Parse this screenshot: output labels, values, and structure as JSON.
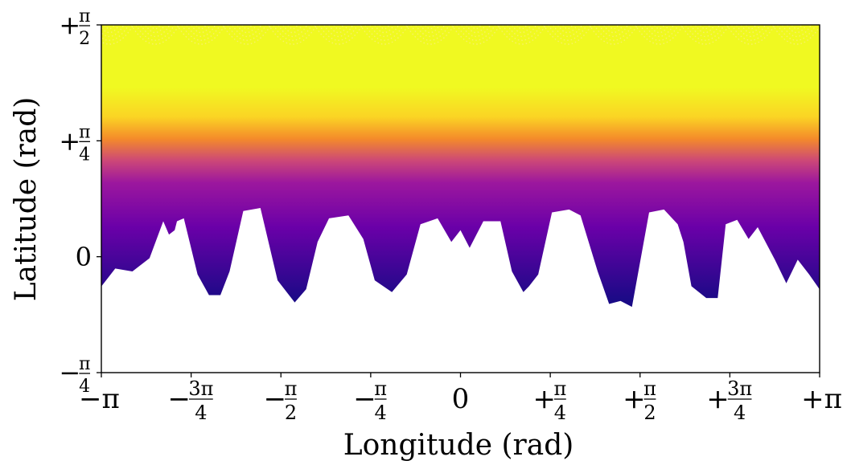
{
  "chart_data": {
    "type": "scatter",
    "title": "",
    "xlabel": "Longitude (rad)",
    "ylabel": "Latitude (rad)",
    "xlim": [
      -3.14159,
      3.14159
    ],
    "ylim": [
      -0.7854,
      1.5708
    ],
    "colormap": "plasma",
    "x_ticks": [
      {
        "value": -3.14159,
        "label": "−π"
      },
      {
        "value": -2.35619,
        "label": "−3π/4"
      },
      {
        "value": -1.5708,
        "label": "−π/2"
      },
      {
        "value": -0.7854,
        "label": "−π/4"
      },
      {
        "value": 0,
        "label": "0"
      },
      {
        "value": 0.7854,
        "label": "+π/4"
      },
      {
        "value": 1.5708,
        "label": "+π/2"
      },
      {
        "value": 2.35619,
        "label": "+3π/4"
      },
      {
        "value": 3.14159,
        "label": "+π"
      }
    ],
    "y_ticks": [
      {
        "value": -0.7854,
        "label": "−π/4"
      },
      {
        "value": 0,
        "label": "0"
      },
      {
        "value": 0.7854,
        "label": "+π/4"
      },
      {
        "value": 1.5708,
        "label": "+π/2"
      }
    ],
    "lower_boundary": {
      "x": [
        -3.14,
        -3.02,
        -2.87,
        -2.72,
        -2.6,
        -2.55,
        -2.5,
        -2.48,
        -2.42,
        -2.3,
        -2.2,
        -2.1,
        -2.02,
        -1.9,
        -1.75,
        -1.6,
        -1.45,
        -1.35,
        -1.25,
        -1.15,
        -0.98,
        -0.85,
        -0.75,
        -0.6,
        -0.47,
        -0.35,
        -0.2,
        -0.08,
        0.0,
        0.08,
        0.2,
        0.35,
        0.45,
        0.55,
        0.6,
        0.68,
        0.8,
        0.95,
        1.05,
        1.2,
        1.3,
        1.4,
        1.5,
        1.65,
        1.78,
        1.9,
        1.95,
        2.02,
        2.15,
        2.25,
        2.32,
        2.42,
        2.52,
        2.6,
        2.75,
        2.85,
        2.95,
        3.05,
        3.14
      ],
      "y": [
        -0.2,
        -0.08,
        -0.1,
        -0.01,
        0.24,
        0.15,
        0.18,
        0.24,
        0.26,
        -0.12,
        -0.26,
        -0.26,
        -0.1,
        0.31,
        0.33,
        -0.16,
        -0.31,
        -0.22,
        0.1,
        0.26,
        0.28,
        0.12,
        -0.16,
        -0.24,
        -0.12,
        0.22,
        0.26,
        0.1,
        0.18,
        0.06,
        0.24,
        0.24,
        -0.1,
        -0.24,
        -0.2,
        -0.12,
        0.3,
        0.32,
        0.28,
        -0.1,
        -0.32,
        -0.3,
        -0.34,
        0.3,
        0.32,
        0.22,
        0.1,
        -0.2,
        -0.28,
        -0.28,
        0.22,
        0.25,
        0.12,
        0.2,
        -0.02,
        -0.18,
        -0.02,
        -0.12,
        -0.22
      ]
    },
    "color_bands": [
      {
        "latitude": -0.3,
        "color": "#1a0a86"
      },
      {
        "latitude": 0.2,
        "color": "#6a00a8"
      },
      {
        "latitude": 0.5,
        "color": "#9c179e"
      },
      {
        "latitude": 0.65,
        "color": "#cc4778"
      },
      {
        "latitude": 0.8,
        "color": "#f48b2a"
      },
      {
        "latitude": 0.95,
        "color": "#fbd524"
      },
      {
        "latitude": 1.15,
        "color": "#f0f921"
      }
    ]
  }
}
